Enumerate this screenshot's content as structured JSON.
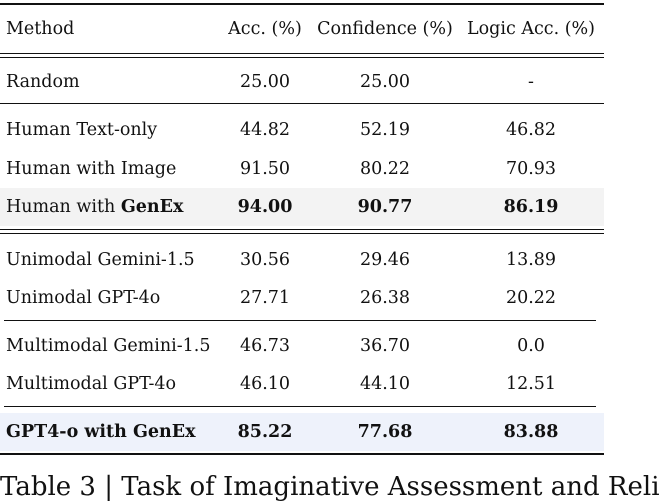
{
  "header": {
    "method": "Method",
    "acc": "Acc. (%)",
    "confidence": "Confidence (%)",
    "logic": "Logic Acc. (%)"
  },
  "rows": [
    {
      "method": "Random",
      "acc": "25.00",
      "confidence": "25.00",
      "logic": "-"
    },
    {
      "method": "Human Text-only",
      "acc": "44.82",
      "confidence": "52.19",
      "logic": "46.82"
    },
    {
      "method": "Human with Image",
      "acc": "91.50",
      "confidence": "80.22",
      "logic": "70.93"
    },
    {
      "method_prefix": "Human with ",
      "method_bold": "GenEx",
      "acc": "94.00",
      "confidence": "90.77",
      "logic": "86.19"
    },
    {
      "method": "Unimodal Gemini-1.5",
      "acc": "30.56",
      "confidence": "29.46",
      "logic": "13.89"
    },
    {
      "method": "Unimodal GPT-4o",
      "acc": "27.71",
      "confidence": "26.38",
      "logic": "20.22"
    },
    {
      "method": "Multimodal Gemini-1.5",
      "acc": "46.73",
      "confidence": "36.70",
      "logic": "0.0"
    },
    {
      "method": "Multimodal GPT-4o",
      "acc": "46.10",
      "confidence": "44.10",
      "logic": "12.51"
    },
    {
      "method": "GPT4-o with GenEx",
      "acc": "85.22",
      "confidence": "77.68",
      "logic": "83.88"
    }
  ],
  "caption": "Table 3 | Task of Imaginative Assessment and Reli"
}
